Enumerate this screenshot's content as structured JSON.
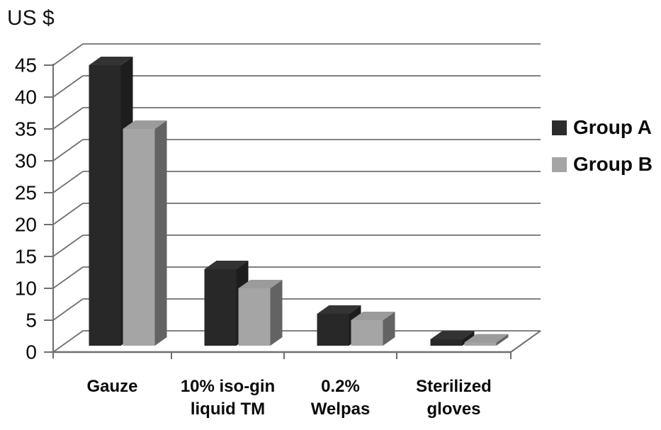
{
  "chart_data": {
    "type": "bar",
    "subtype": "3d-clustered-column",
    "title": "US $",
    "ylabel": "US $",
    "categories": [
      "Gauze",
      "10% iso-gin liquid TM",
      "0.2% Welpas",
      "Sterilized gloves"
    ],
    "category_label_lines": [
      [
        "Gauze"
      ],
      [
        "10% iso-gin",
        "liquid TM"
      ],
      [
        "0.2%",
        "Welpas"
      ],
      [
        "Sterilized",
        "gloves"
      ]
    ],
    "series": [
      {
        "name": "Group A",
        "values": [
          44,
          12,
          5,
          1
        ],
        "color": "#282828",
        "color_top": "#333333",
        "color_side": "#1d1d1d"
      },
      {
        "name": "Group B",
        "values": [
          34,
          9,
          4,
          0.5
        ],
        "color": "#a5a5a5",
        "color_top": "#9b9b9b",
        "color_side": "#636363"
      }
    ],
    "ylim": [
      0,
      45
    ],
    "ytick_step": 5,
    "yticks": [
      0,
      5,
      10,
      15,
      20,
      25,
      30,
      35,
      40,
      45
    ],
    "grid": true,
    "legend_position": "right",
    "axis_color": "#6f6f6f",
    "text_color": "#0a0a0a"
  }
}
